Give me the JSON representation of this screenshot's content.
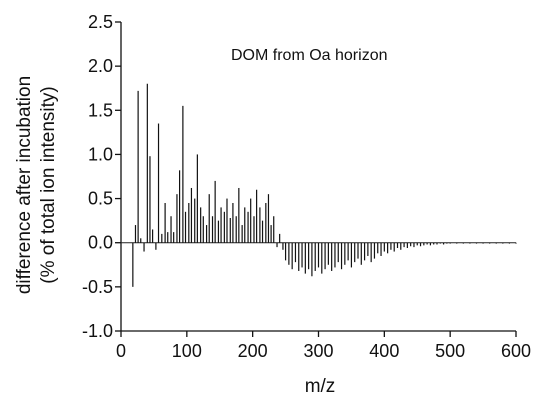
{
  "chart_data": {
    "type": "bar",
    "title": "",
    "annotation": "DOM from Oa horizon",
    "xlabel": "m/z",
    "ylabel_line1": "difference after incubation",
    "ylabel_line2": "(% of total ion intensity)",
    "xlim": [
      0,
      600
    ],
    "ylim": [
      -1.0,
      2.5
    ],
    "xticks": [
      0,
      100,
      200,
      300,
      400,
      500,
      600
    ],
    "xtick_labels": [
      "0",
      "100",
      "200",
      "300",
      "400",
      "500",
      "600"
    ],
    "yticks": [
      -1.0,
      -0.5,
      0.0,
      0.5,
      1.0,
      1.5,
      2.0,
      2.5
    ],
    "ytick_labels": [
      "-1.0",
      "-0.5",
      "0.0",
      "0.5",
      "1.0",
      "1.5",
      "2.0",
      "2.5"
    ],
    "grid": false,
    "legend": "none",
    "series": [
      {
        "color": "#111111",
        "x": [
          18,
          22,
          26,
          30,
          35,
          40,
          44,
          48,
          53,
          57,
          62,
          67,
          71,
          76,
          80,
          85,
          89,
          94,
          98,
          103,
          107,
          112,
          116,
          121,
          125,
          130,
          134,
          139,
          143,
          148,
          152,
          157,
          161,
          166,
          170,
          175,
          179,
          184,
          188,
          193,
          197,
          202,
          206,
          211,
          215,
          220,
          224,
          228,
          232,
          237,
          241,
          246,
          250,
          255,
          260,
          265,
          270,
          275,
          280,
          285,
          290,
          295,
          300,
          305,
          310,
          315,
          320,
          325,
          330,
          335,
          340,
          345,
          350,
          355,
          360,
          365,
          370,
          375,
          380,
          385,
          390,
          395,
          400,
          405,
          410,
          415,
          420,
          425,
          430,
          435,
          440,
          445,
          450,
          455,
          460,
          465,
          470,
          475,
          480,
          485,
          490,
          495,
          500,
          510,
          520,
          530,
          540,
          550,
          560,
          570,
          580,
          590,
          600
        ],
        "values": [
          -0.5,
          0.2,
          1.72,
          0.05,
          -0.1,
          1.8,
          0.98,
          0.15,
          -0.08,
          1.35,
          0.1,
          0.45,
          0.12,
          0.3,
          0.12,
          0.55,
          0.82,
          1.55,
          0.35,
          0.45,
          0.62,
          0.5,
          1.0,
          0.4,
          0.3,
          0.2,
          0.55,
          0.3,
          0.7,
          0.25,
          0.4,
          0.35,
          0.5,
          0.28,
          0.45,
          0.3,
          0.62,
          0.2,
          0.4,
          0.35,
          0.5,
          0.3,
          0.6,
          0.4,
          0.25,
          0.45,
          0.55,
          0.2,
          0.3,
          -0.05,
          0.1,
          -0.08,
          -0.2,
          -0.25,
          -0.3,
          -0.22,
          -0.32,
          -0.28,
          -0.35,
          -0.3,
          -0.38,
          -0.32,
          -0.28,
          -0.35,
          -0.3,
          -0.25,
          -0.32,
          -0.28,
          -0.22,
          -0.3,
          -0.25,
          -0.2,
          -0.28,
          -0.22,
          -0.18,
          -0.25,
          -0.2,
          -0.15,
          -0.22,
          -0.18,
          -0.12,
          -0.15,
          -0.1,
          -0.12,
          -0.08,
          -0.1,
          -0.06,
          -0.08,
          -0.05,
          -0.06,
          -0.04,
          -0.05,
          -0.03,
          -0.04,
          -0.03,
          -0.02,
          -0.03,
          -0.02,
          -0.02,
          -0.01,
          -0.02,
          -0.01,
          -0.01,
          -0.01,
          -0.01,
          -0.01,
          -0.01,
          -0.01,
          -0.01,
          -0.01,
          -0.01,
          -0.01,
          -0.01
        ]
      }
    ]
  }
}
